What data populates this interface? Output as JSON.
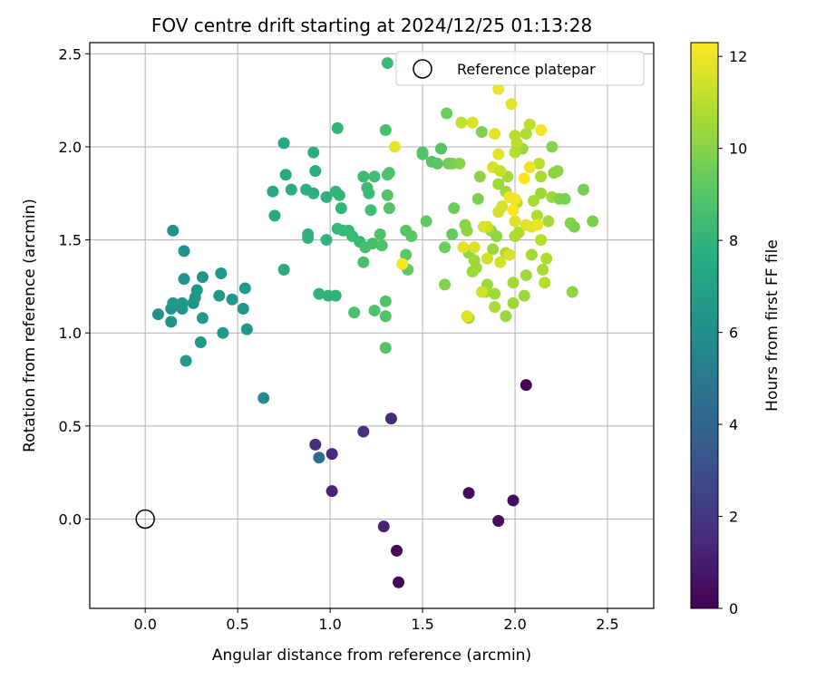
{
  "chart_data": {
    "type": "scatter",
    "title": "FOV centre drift starting at 2024/12/25 01:13:28",
    "xlabel": "Angular distance from reference (arcmin)",
    "ylabel": "Rotation from reference (arcmin)",
    "xlim": [
      -0.3,
      2.75
    ],
    "ylim": [
      -0.48,
      2.56
    ],
    "x_ticks": [
      0.0,
      0.5,
      1.0,
      1.5,
      2.0,
      2.5
    ],
    "x_tick_labels": [
      "0.0",
      "0.5",
      "1.0",
      "1.5",
      "2.0",
      "2.5"
    ],
    "y_ticks": [
      0.0,
      0.5,
      1.0,
      1.5,
      2.0,
      2.5
    ],
    "y_tick_labels": [
      "0.0",
      "0.5",
      "1.0",
      "1.5",
      "2.0",
      "2.5"
    ],
    "grid": true,
    "legend": {
      "placement": "top-right",
      "entries": [
        {
          "label": "Reference platepar",
          "marker": "open-circle"
        }
      ]
    },
    "colorbar": {
      "label": "Hours from first FF file",
      "range": [
        0,
        12.3
      ],
      "ticks": [
        0,
        2,
        4,
        6,
        8,
        10,
        12
      ],
      "tick_labels": [
        "0",
        "2",
        "4",
        "6",
        "8",
        "10",
        "12"
      ],
      "colormap": "viridis"
    },
    "reference_point": {
      "x": 0.0,
      "y": 0.0
    },
    "series": [
      {
        "points": [
          [
            2.06,
            0.72,
            0.1
          ],
          [
            1.37,
            -0.34,
            0.2
          ],
          [
            1.36,
            -0.17,
            0.3
          ],
          [
            1.75,
            0.14,
            0.3
          ],
          [
            1.91,
            -0.01,
            0.4
          ],
          [
            1.99,
            0.1,
            0.5
          ],
          [
            1.29,
            -0.04,
            1.2
          ],
          [
            1.01,
            0.15,
            1.3
          ],
          [
            1.33,
            0.54,
            1.5
          ],
          [
            1.01,
            0.35,
            1.5
          ],
          [
            0.92,
            0.4,
            1.6
          ],
          [
            1.18,
            0.47,
            1.8
          ],
          [
            0.94,
            0.33,
            4.3
          ],
          [
            0.64,
            0.65,
            5.9
          ],
          [
            0.15,
            1.55,
            6.2
          ],
          [
            0.21,
            1.44,
            6.3
          ],
          [
            0.21,
            1.29,
            6.4
          ],
          [
            0.31,
            1.3,
            6.4
          ],
          [
            0.07,
            1.1,
            6.2
          ],
          [
            0.14,
            1.13,
            6.3
          ],
          [
            0.14,
            1.06,
            6.3
          ],
          [
            0.2,
            1.13,
            6.4
          ],
          [
            0.2,
            1.16,
            6.5
          ],
          [
            0.26,
            1.16,
            6.4
          ],
          [
            0.27,
            1.19,
            6.5
          ],
          [
            0.28,
            1.23,
            6.5
          ],
          [
            0.4,
            1.2,
            6.5
          ],
          [
            0.41,
            1.32,
            6.6
          ],
          [
            0.47,
            1.18,
            6.6
          ],
          [
            0.31,
            1.08,
            6.6
          ],
          [
            0.53,
            1.13,
            6.6
          ],
          [
            0.54,
            1.24,
            6.7
          ],
          [
            0.55,
            1.02,
            6.5
          ],
          [
            0.42,
            1.0,
            6.6
          ],
          [
            0.3,
            0.95,
            6.6
          ],
          [
            0.22,
            0.85,
            6.7
          ],
          [
            0.15,
            1.16,
            6.7
          ],
          [
            0.75,
            2.02,
            7.3
          ],
          [
            0.69,
            1.76,
            7.4
          ],
          [
            0.7,
            1.63,
            7.4
          ],
          [
            0.76,
            1.85,
            7.5
          ],
          [
            0.79,
            1.77,
            7.6
          ],
          [
            0.75,
            1.34,
            7.6
          ],
          [
            0.91,
            1.97,
            7.7
          ],
          [
            0.92,
            1.87,
            7.7
          ],
          [
            0.87,
            1.77,
            7.8
          ],
          [
            0.91,
            1.75,
            7.8
          ],
          [
            0.98,
            1.73,
            7.8
          ],
          [
            0.88,
            1.53,
            7.9
          ],
          [
            0.88,
            1.51,
            7.9
          ],
          [
            0.98,
            1.5,
            8.0
          ],
          [
            0.94,
            1.21,
            8.0
          ],
          [
            0.99,
            1.2,
            8.0
          ],
          [
            1.03,
            1.2,
            8.1
          ],
          [
            1.04,
            2.1,
            8.0
          ],
          [
            1.03,
            1.76,
            8.1
          ],
          [
            1.05,
            1.74,
            8.1
          ],
          [
            1.06,
            1.67,
            8.1
          ],
          [
            1.04,
            1.56,
            8.2
          ],
          [
            1.07,
            1.55,
            8.2
          ],
          [
            1.1,
            1.55,
            8.2
          ],
          [
            1.12,
            1.52,
            8.3
          ],
          [
            1.16,
            1.49,
            8.3
          ],
          [
            1.18,
            1.84,
            8.4
          ],
          [
            1.2,
            1.78,
            8.4
          ],
          [
            1.21,
            1.75,
            8.4
          ],
          [
            1.24,
            1.84,
            8.5
          ],
          [
            1.22,
            1.66,
            8.5
          ],
          [
            1.19,
            1.46,
            8.6
          ],
          [
            1.23,
            1.48,
            8.6
          ],
          [
            1.18,
            1.38,
            8.7
          ],
          [
            1.13,
            1.11,
            8.7
          ],
          [
            1.27,
            1.53,
            8.8
          ],
          [
            1.28,
            1.47,
            8.8
          ],
          [
            1.24,
            1.12,
            8.8
          ],
          [
            1.3,
            1.17,
            8.9
          ],
          [
            1.3,
            1.09,
            8.9
          ],
          [
            1.3,
            0.92,
            9.0
          ],
          [
            1.3,
            2.09,
            8.7
          ],
          [
            1.31,
            1.85,
            8.8
          ],
          [
            1.32,
            1.86,
            8.8
          ],
          [
            1.31,
            1.74,
            8.9
          ],
          [
            1.32,
            1.67,
            8.9
          ],
          [
            1.41,
            1.55,
            9.0
          ],
          [
            1.44,
            1.52,
            9.1
          ],
          [
            1.41,
            1.42,
            9.1
          ],
          [
            1.42,
            1.34,
            9.2
          ],
          [
            1.52,
            1.6,
            9.2
          ],
          [
            1.5,
            1.97,
            8.8
          ],
          [
            1.5,
            1.96,
            8.9
          ],
          [
            1.55,
            1.92,
            9.0
          ],
          [
            1.58,
            1.91,
            9.1
          ],
          [
            1.6,
            1.99,
            9.0
          ],
          [
            1.63,
            2.18,
            9.5
          ],
          [
            1.64,
            1.91,
            9.6
          ],
          [
            1.66,
            1.91,
            9.7
          ],
          [
            1.66,
            1.53,
            9.4
          ],
          [
            1.67,
            1.67,
            9.5
          ],
          [
            1.62,
            1.46,
            9.5
          ],
          [
            1.62,
            1.26,
            10.0
          ],
          [
            1.7,
            1.91,
            10.0
          ],
          [
            1.73,
            1.58,
            10.1
          ],
          [
            1.74,
            1.55,
            10.2
          ],
          [
            1.75,
            1.43,
            10.2
          ],
          [
            1.75,
            1.08,
            10.6
          ],
          [
            1.77,
            1.33,
            10.4
          ],
          [
            1.79,
            1.35,
            10.5
          ],
          [
            1.78,
            1.39,
            10.5
          ],
          [
            1.8,
            1.72,
            9.8
          ],
          [
            1.81,
            1.84,
            10.2
          ],
          [
            1.82,
            2.08,
            9.9
          ],
          [
            1.85,
            1.26,
            10.5
          ],
          [
            1.84,
            1.22,
            10.6
          ],
          [
            1.87,
            1.55,
            10.3
          ],
          [
            1.88,
            1.45,
            10.4
          ],
          [
            1.9,
            1.52,
            10.2
          ],
          [
            1.89,
            1.21,
            10.5
          ],
          [
            1.89,
            1.14,
            10.7
          ],
          [
            1.91,
            1.8,
            10.5
          ],
          [
            1.95,
            1.76,
            10.5
          ],
          [
            1.96,
            1.84,
            10.6
          ],
          [
            1.95,
            1.43,
            10.8
          ],
          [
            1.95,
            1.09,
            10.4
          ],
          [
            1.99,
            1.16,
            10.5
          ],
          [
            1.99,
            1.27,
            10.6
          ],
          [
            2.0,
            1.52,
            10.7
          ],
          [
            2.01,
            1.7,
            10.9
          ],
          [
            2.02,
            1.54,
            10.8
          ],
          [
            2.05,
            1.2,
            10.4
          ],
          [
            2.06,
            1.31,
            10.5
          ],
          [
            2.09,
            1.42,
            10.6
          ],
          [
            2.1,
            1.71,
            10.7
          ],
          [
            2.12,
            1.63,
            10.8
          ],
          [
            2.14,
            1.5,
            10.9
          ],
          [
            2.15,
            1.34,
            10.7
          ],
          [
            2.16,
            1.27,
            10.9
          ],
          [
            2.17,
            1.4,
            10.8
          ],
          [
            2.18,
            1.6,
            10.6
          ],
          [
            2.2,
            1.73,
            10.5
          ],
          [
            2.21,
            1.86,
            10.2
          ],
          [
            2.2,
            2.0,
            10.0
          ],
          [
            2.23,
            1.87,
            10.1
          ],
          [
            2.24,
            1.72,
            9.9
          ],
          [
            2.27,
            1.72,
            9.8
          ],
          [
            2.3,
            1.59,
            10.0
          ],
          [
            2.32,
            1.57,
            9.8
          ],
          [
            2.31,
            1.22,
            10.2
          ],
          [
            2.37,
            1.77,
            9.7
          ],
          [
            2.42,
            1.6,
            9.8
          ],
          [
            2.14,
            1.75,
            10.5
          ],
          [
            2.04,
            1.99,
            10.4
          ],
          [
            2.06,
            2.07,
            10.8
          ],
          [
            2.01,
            2.02,
            11.0
          ],
          [
            2.08,
            2.12,
            11.1
          ],
          [
            2.13,
            1.91,
            11.0
          ],
          [
            2.14,
            1.84,
            10.7
          ],
          [
            2.0,
            1.97,
            10.9
          ],
          [
            2.0,
            2.06,
            11.0
          ],
          [
            1.98,
            2.23,
            11.8
          ],
          [
            1.91,
            2.31,
            12.0
          ],
          [
            1.89,
            2.07,
            11.8
          ],
          [
            1.91,
            1.96,
            11.8
          ],
          [
            1.88,
            1.89,
            11.6
          ],
          [
            1.97,
            1.73,
            12.0
          ],
          [
            1.93,
            1.68,
            11.5
          ],
          [
            1.91,
            1.65,
            11.5
          ],
          [
            1.85,
            1.57,
            11.4
          ],
          [
            1.83,
            1.57,
            11.6
          ],
          [
            1.78,
            1.46,
            11.6
          ],
          [
            1.72,
            1.46,
            11.8
          ],
          [
            1.74,
            1.09,
            11.7
          ],
          [
            1.82,
            1.22,
            11.5
          ],
          [
            1.85,
            1.4,
            11.4
          ],
          [
            1.92,
            1.38,
            11.5
          ],
          [
            1.97,
            1.42,
            11.6
          ],
          [
            2.0,
            1.6,
            11.7
          ],
          [
            2.06,
            1.58,
            11.7
          ],
          [
            2.09,
            1.57,
            11.8
          ],
          [
            2.12,
            1.58,
            11.9
          ],
          [
            2.14,
            2.09,
            12.1
          ],
          [
            2.08,
            1.89,
            12.0
          ],
          [
            2.05,
            1.83,
            12.2
          ],
          [
            2.0,
            1.72,
            12.1
          ],
          [
            1.99,
            1.66,
            12.3
          ],
          [
            1.92,
            1.87,
            11.3
          ],
          [
            1.77,
            2.13,
            11.6
          ],
          [
            1.71,
            2.13,
            11.2
          ],
          [
            1.35,
            2.0,
            11.9
          ],
          [
            1.39,
            1.37,
            12.2
          ],
          [
            1.31,
            2.45,
            8.3
          ]
        ]
      }
    ]
  }
}
